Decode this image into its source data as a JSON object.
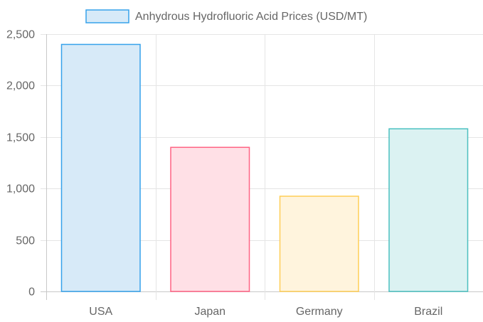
{
  "chart_data": {
    "type": "bar",
    "categories": [
      "USA",
      "Japan",
      "Germany",
      "Brazil"
    ],
    "series": [
      {
        "name": "Anhydrous Hydrofluoric Acid Prices (USD/MT)",
        "values": [
          2400,
          1400,
          925,
          1580
        ]
      }
    ],
    "ylim": [
      0,
      2500
    ],
    "yticks": [
      0,
      500,
      1000,
      1500,
      2000,
      2500
    ],
    "ytick_labels": [
      "0",
      "500",
      "1,000",
      "1,500",
      "2,000",
      "2,500"
    ],
    "grid": true,
    "legend_position": "top",
    "bar_colors": [
      {
        "fill": "#d7eaf8",
        "stroke": "#36a2eb"
      },
      {
        "fill": "#ffe0e6",
        "stroke": "#ff6384"
      },
      {
        "fill": "#fff4dd",
        "stroke": "#ffce56"
      },
      {
        "fill": "#dbf2f2",
        "stroke": "#4bc0c0"
      }
    ],
    "legend_swatch": {
      "fill": "#d7eaf8",
      "stroke": "#36a2eb"
    }
  }
}
